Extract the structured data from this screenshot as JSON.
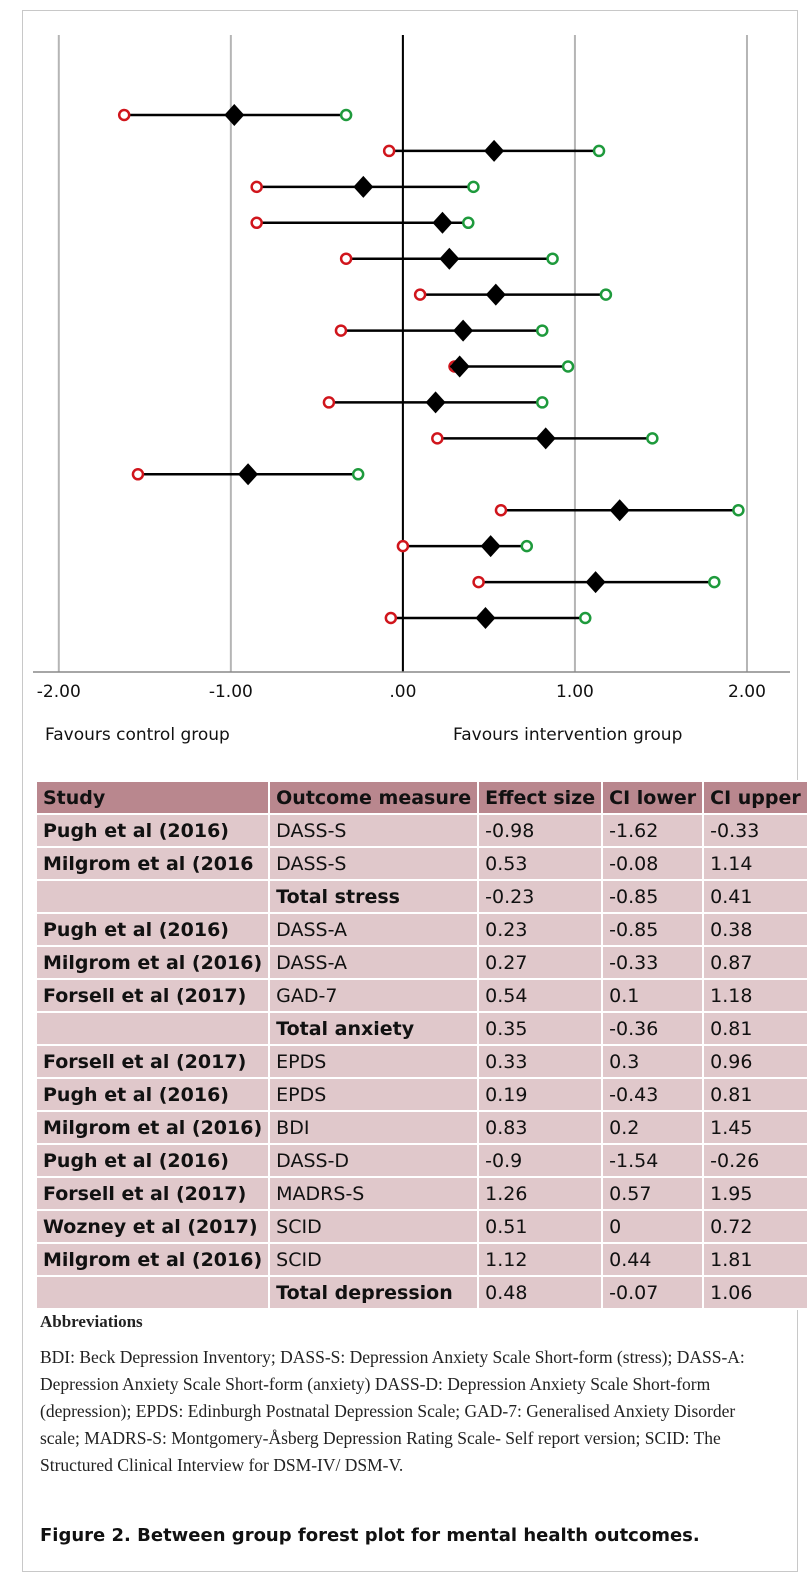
{
  "chart_data": {
    "type": "forest",
    "columns": [
      "Study",
      "Outcome measure"
    ],
    "studies": [
      "Pugh et al (2016)",
      "Milgrom et al (2016",
      null,
      "Pugh et al (2016)",
      "Milgrom et al (2016)",
      "Forsell et al (2017)",
      null,
      "Forsell et al (2017)",
      "Pugh et al (2016)",
      "Milgrom et al (2016)",
      "Pugh et al (2016)",
      "Forsell et al (2017)",
      "Wozney et al (2017)",
      "Milgrom et al (2016)",
      null
    ],
    "outcomes": [
      "DASS-S",
      "DASS-S",
      "Total stress",
      "DASS-A",
      "DASS-A",
      "GAD-7",
      "Total anxiety",
      "EPDS",
      "EPDS",
      "BDI",
      "DASS-D",
      "MADRS-S",
      "SCID",
      "SCID",
      "Total depression"
    ],
    "series": [
      {
        "name": "Effect size",
        "color": "#000000",
        "values": [
          -0.98,
          0.53,
          -0.23,
          0.23,
          0.27,
          0.54,
          0.35,
          0.33,
          0.19,
          0.83,
          -0.9,
          1.26,
          0.51,
          1.12,
          0.48
        ]
      },
      {
        "name": "CI lower",
        "color": "#d0151c",
        "values": [
          -1.62,
          -0.08,
          -0.85,
          -0.85,
          -0.33,
          0.1,
          -0.36,
          0.3,
          -0.43,
          0.2,
          -1.54,
          0.57,
          0,
          0.44,
          -0.07
        ]
      },
      {
        "name": "CI upper",
        "color": "#1e9a3c",
        "values": [
          -0.33,
          1.14,
          0.41,
          0.38,
          0.87,
          1.18,
          0.81,
          0.96,
          0.81,
          1.45,
          -0.26,
          1.95,
          0.72,
          1.81,
          1.06
        ]
      }
    ],
    "xlim": [
      -2.15,
      2.25
    ],
    "xticks": [
      {
        "value": -2,
        "label": "-2.00"
      },
      {
        "value": -1,
        "label": "-1.00"
      },
      {
        "value": 0,
        "label": ".00"
      },
      {
        "value": 1,
        "label": "1.00"
      },
      {
        "value": 2,
        "label": "2.00"
      }
    ],
    "grid": true,
    "annotations": [
      "Favours control group",
      "Favours intervention group"
    ],
    "abbreviations_heading": "Abbreviations",
    "abbreviations": "BDI: Beck Depression Inventory; DASS-S: Depression Anxiety Scale Short-form (stress); DASS-A: Depression Anxiety Scale Short-form (anxiety) DASS-D: Depression Anxiety Scale Short-form (depression); EPDS: Edinburgh Postnatal Depression Scale; GAD-7: Generalised Anxiety Disorder scale; MADRS-S: Montgomery-Åsberg Depression Rating Scale- Self report version; SCID: The Structured Clinical Interview for DSM-IV/ DSM-V.",
    "caption": "Figure 2. Between group forest plot for mental health outcomes."
  }
}
